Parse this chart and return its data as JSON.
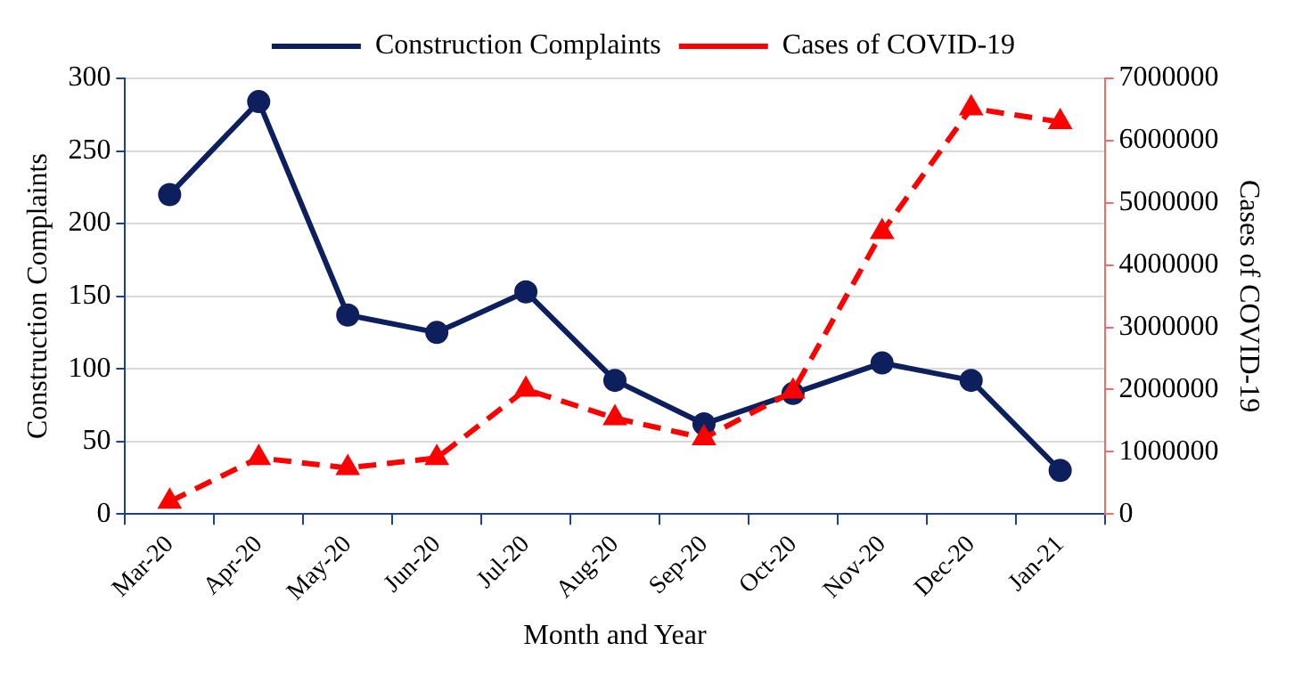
{
  "chart_data": {
    "type": "line",
    "xlabel": "Month and Year",
    "ylabel": "Construction Complaints",
    "y2label": "Cases of COVID-19",
    "categories": [
      "Mar-20",
      "Apr-20",
      "May-20",
      "Jun-20",
      "Jul-20",
      "Aug-20",
      "Sep-20",
      "Oct-20",
      "Nov-20",
      "Dec-20",
      "Jan-21"
    ],
    "series": [
      {
        "name": "Construction Complaints",
        "color": "#0d1f5c",
        "marker": "circle",
        "line_style": "solid",
        "values": [
          220,
          284,
          137,
          125,
          153,
          92,
          62,
          83,
          104,
          92,
          30
        ]
      },
      {
        "name": "Cases of COVID-19",
        "color": "#ff0000",
        "marker": "triangle",
        "line_style": "dashed",
        "axis": "y2",
        "values": [
          200000,
          900000,
          740000,
          900000,
          2000000,
          1540000,
          1220000,
          1970000,
          4530000,
          6520000,
          6300000
        ]
      }
    ],
    "ylim": [
      0,
      300
    ],
    "yticks": [
      0,
      50,
      100,
      150,
      200,
      250,
      300
    ],
    "y2lim": [
      0,
      7000000
    ],
    "y2ticks": [
      0,
      1000000,
      2000000,
      3000000,
      4000000,
      5000000,
      6000000,
      7000000
    ],
    "grid": "y",
    "legend": "top"
  }
}
